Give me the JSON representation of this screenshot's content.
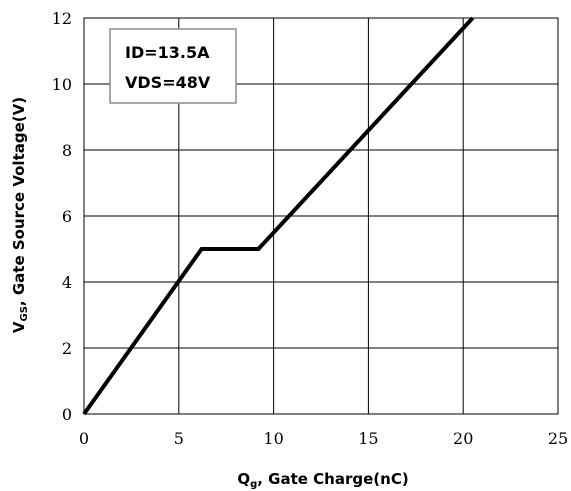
{
  "chart_data": {
    "type": "line",
    "title": "",
    "xlabel": {
      "main": "Q",
      "sub": "g",
      "rest": ", Gate Charge(nC)"
    },
    "ylabel": {
      "main": "V",
      "sub": "GS",
      "rest": ", Gate Source Voltage(V)"
    },
    "xlim": [
      0,
      25
    ],
    "ylim": [
      0,
      12
    ],
    "xticks": [
      0,
      5,
      10,
      15,
      20,
      25
    ],
    "yticks": [
      0,
      2,
      4,
      6,
      8,
      10,
      12
    ],
    "grid": true,
    "annotation": {
      "lines": [
        "ID=13.5A",
        "VDS=48V"
      ],
      "placement": "top-left"
    },
    "series": [
      {
        "x": [
          0,
          6.2,
          9.2,
          20.5
        ],
        "y": [
          0,
          5.0,
          5.0,
          12.0
        ],
        "color": "#000000"
      }
    ]
  }
}
